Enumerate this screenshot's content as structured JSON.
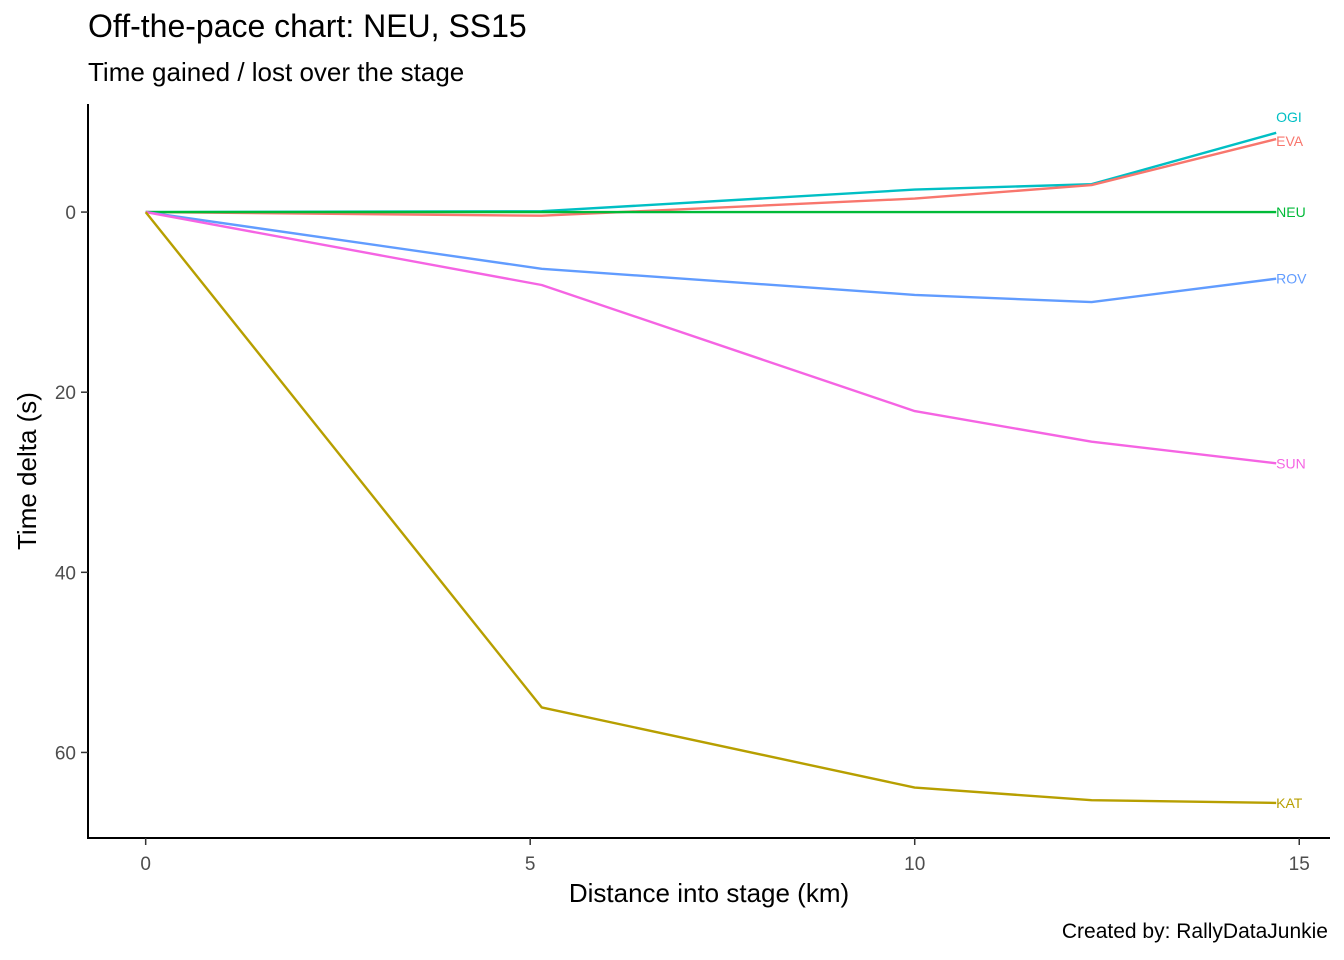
{
  "title": "Off-the-pace chart: NEU, SS15",
  "subtitle": "Time gained / lost over the stage",
  "caption": "Created by: RallyDataJunkie",
  "chart_data": {
    "type": "line",
    "xlabel": "Distance into stage (km)",
    "ylabel": "Time delta (s)",
    "xlim": [
      -0.75,
      15.4
    ],
    "ylim": [
      -12,
      69.5
    ],
    "y_reversed": true,
    "xticks": [
      0,
      5,
      10,
      15
    ],
    "yticks": [
      0,
      20,
      40,
      60
    ],
    "grid": false,
    "legend": "direct labels at line ends",
    "series": [
      {
        "name": "OGI",
        "color": "#00BFC4",
        "x": [
          0,
          5.15,
          10,
          12.3,
          14.7
        ],
        "y": [
          0,
          -0.1,
          -2.5,
          -3.1,
          -8.8
        ]
      },
      {
        "name": "EVA",
        "color": "#F8766D",
        "x": [
          0,
          5.15,
          10,
          12.3,
          14.7
        ],
        "y": [
          0,
          0.4,
          -1.5,
          -3.0,
          -8.1
        ]
      },
      {
        "name": "NEU",
        "color": "#00BA38",
        "x": [
          0,
          5.15,
          10,
          12.3,
          14.7
        ],
        "y": [
          0,
          0,
          0,
          0,
          0
        ]
      },
      {
        "name": "ROV",
        "color": "#619CFF",
        "x": [
          0,
          5.15,
          10,
          12.3,
          14.7
        ],
        "y": [
          0,
          6.3,
          9.2,
          10.0,
          7.4
        ]
      },
      {
        "name": "SUN",
        "color": "#F564E3",
        "x": [
          0,
          5.15,
          10,
          12.3,
          14.7
        ],
        "y": [
          0,
          8.1,
          22.1,
          25.5,
          27.9
        ]
      },
      {
        "name": "KAT",
        "color": "#B79F00",
        "x": [
          0,
          5.15,
          10,
          12.3,
          14.7
        ],
        "y": [
          0,
          55.0,
          63.9,
          65.3,
          65.6
        ]
      }
    ]
  }
}
